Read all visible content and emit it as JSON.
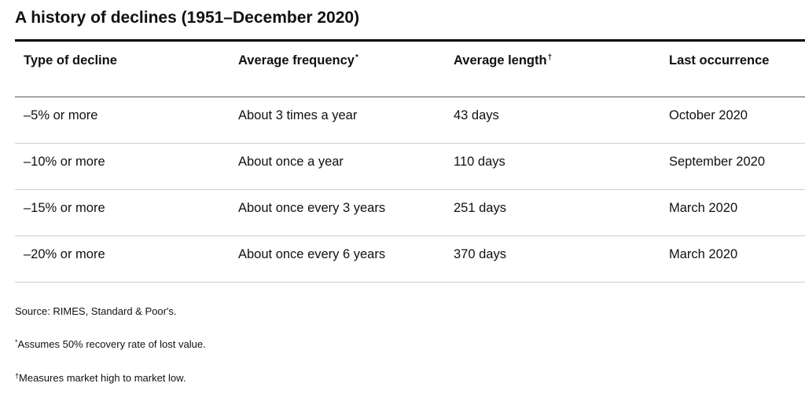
{
  "title": "A history of declines (1951–December 2020)",
  "table": {
    "headers": [
      {
        "label": "Type of decline",
        "mark": ""
      },
      {
        "label": "Average frequency",
        "mark": "*"
      },
      {
        "label": "Average length",
        "mark": "†"
      },
      {
        "label": "Last occurrence",
        "mark": ""
      }
    ],
    "rows": [
      {
        "type": "–5% or more",
        "frequency": "About 3 times a year",
        "length": "43 days",
        "last": "October 2020"
      },
      {
        "type": "–10% or more",
        "frequency": "About once a year",
        "length": "110 days",
        "last": "September 2020"
      },
      {
        "type": "–15% or more",
        "frequency": "About once every 3 years",
        "length": "251 days",
        "last": "March 2020"
      },
      {
        "type": "–20% or more",
        "frequency": "About once every 6 years",
        "length": "370 days",
        "last": "March 2020"
      }
    ]
  },
  "footnotes": {
    "source": "Source: RIMES, Standard & Poor's.",
    "asterisk_mark": "*",
    "asterisk_text": "Assumes 50% recovery rate of lost value.",
    "dagger_mark": "†",
    "dagger_text": "Measures market high to market low."
  }
}
